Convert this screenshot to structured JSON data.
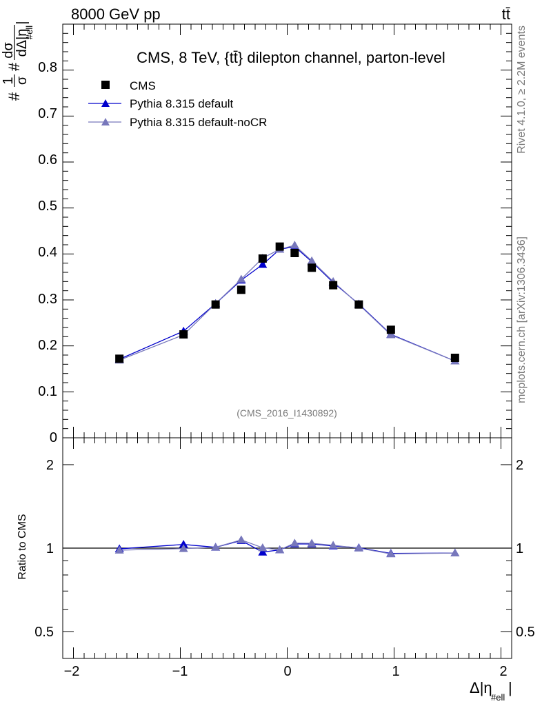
{
  "header": {
    "left": "8000 GeV pp",
    "right": "tt̄"
  },
  "side_text": {
    "rivet": "Rivet 4.1.0, ≥ 2.2M events",
    "mcplots": "mcplots.cern.ch [arXiv:1306.3436]"
  },
  "colors": {
    "cms": "#000000",
    "pythia_default": "#0000cc",
    "pythia_nocr": "#7777bb"
  },
  "chart_data": [
    {
      "type": "scatter",
      "title": "CMS, 8 TeV, {tt̄} dilepton channel, parton-level",
      "watermark": "(CMS_2016_I1430892)",
      "ylabel": "#1/σ # dσ / dΔ|η_#ell|",
      "ylabel_parts": {
        "prefix": "#",
        "frac1_num": "1",
        "frac1_den": "σ",
        "mid": "#",
        "frac2_num": "dσ",
        "frac2_den": "dΔ|η",
        "sub": "#ell",
        "bar": "|"
      },
      "xlim": [
        -2.1,
        2.1
      ],
      "ylim": [
        0,
        0.9
      ],
      "y_ticks": [
        "0.1",
        "0.2",
        "0.3",
        "0.4",
        "0.5",
        "0.6",
        "0.7",
        "0.8"
      ],
      "y_zero_label": "0",
      "legend_position": "top-left",
      "legend": [
        "CMS",
        "Pythia 8.315 default",
        "Pythia 8.315 default-noCR"
      ],
      "x": [
        -1.57,
        -0.97,
        -0.67,
        -0.43,
        -0.23,
        -0.07,
        0.07,
        0.23,
        0.43,
        0.67,
        0.97,
        1.57
      ],
      "series": [
        {
          "name": "CMS",
          "marker": "square",
          "values": [
            0.172,
            0.225,
            0.29,
            0.322,
            0.39,
            0.416,
            0.402,
            0.37,
            0.332,
            0.29,
            0.235,
            0.174
          ]
        },
        {
          "name": "Pythia 8.315 default",
          "marker": "triangle",
          "values": [
            0.171,
            0.232,
            0.292,
            0.343,
            0.377,
            0.41,
            0.416,
            0.383,
            0.338,
            0.291,
            0.225,
            0.167
          ]
        },
        {
          "name": "Pythia 8.315 default-noCR",
          "marker": "triangle",
          "values": [
            0.169,
            0.224,
            0.292,
            0.345,
            0.391,
            0.41,
            0.419,
            0.385,
            0.34,
            0.29,
            0.224,
            0.167
          ]
        }
      ]
    },
    {
      "type": "line",
      "ylabel": "Ratio to CMS",
      "xlabel": "Δ|η_#ell|",
      "xlabel_parts": {
        "main": "Δ|η",
        "sub": "#ell",
        "bar": "|"
      },
      "xlim": [
        -2.1,
        2.1
      ],
      "ylim_log": [
        0.4,
        2.5
      ],
      "y_ticks": [
        "0.5",
        "1",
        "2"
      ],
      "x_ticks": [
        "−2",
        "−1",
        "0",
        "1",
        "2"
      ],
      "x": [
        -1.57,
        -0.97,
        -0.67,
        -0.43,
        -0.23,
        -0.07,
        0.07,
        0.23,
        0.43,
        0.67,
        0.97,
        1.57
      ],
      "series": [
        {
          "name": "Pythia 8.315 default",
          "values": [
            0.994,
            1.031,
            1.007,
            1.065,
            0.967,
            0.986,
            1.035,
            1.035,
            1.018,
            1.003,
            0.957,
            0.96
          ]
        },
        {
          "name": "Pythia 8.315 default-noCR",
          "values": [
            0.983,
            0.996,
            1.007,
            1.071,
            1.003,
            0.986,
            1.042,
            1.041,
            1.024,
            1.0,
            0.953,
            0.96
          ]
        }
      ]
    }
  ]
}
